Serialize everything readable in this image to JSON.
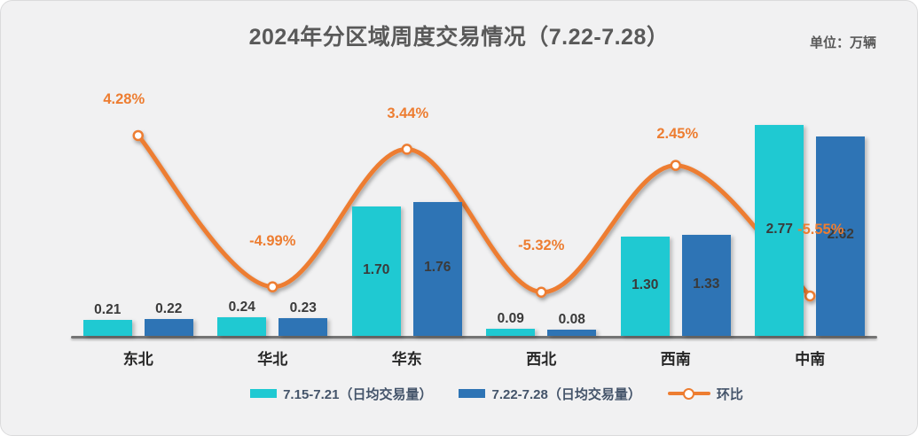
{
  "card": {
    "title": "2024年分区域周度交易情况（7.22-7.28）",
    "unit_label": "单位：万辆"
  },
  "chart_data": {
    "type": "combo",
    "categories": [
      "东北",
      "华北",
      "华东",
      "西北",
      "西南",
      "中南"
    ],
    "series": [
      {
        "name": "7.15-7.21（日均交易量）",
        "chart_type": "bar",
        "color": "#1FC9D2",
        "values": [
          0.21,
          0.24,
          1.7,
          0.09,
          1.3,
          2.77
        ],
        "labels": [
          "0.21",
          "0.24",
          "1.70",
          "0.09",
          "1.30",
          "2.77"
        ]
      },
      {
        "name": "7.22-7.28（日均交易量）",
        "chart_type": "bar",
        "color": "#2E74B5",
        "values": [
          0.22,
          0.23,
          1.76,
          0.08,
          1.33,
          2.62
        ],
        "labels": [
          "0.22",
          "0.23",
          "1.76",
          "0.08",
          "1.33",
          "2.62"
        ]
      },
      {
        "name": "环比",
        "chart_type": "line",
        "color": "#ED7D31",
        "unit": "%",
        "values": [
          4.28,
          -4.99,
          3.44,
          -5.32,
          2.45,
          -5.55
        ],
        "labels": [
          "4.28%",
          "-4.99%",
          "3.44%",
          "-5.32%",
          "2.45%",
          "-5.55%"
        ]
      }
    ],
    "ylabel": "",
    "xlabel": "",
    "grid": false,
    "legend_position": "bottom",
    "colors": {
      "background": "#F1F1F2",
      "axis": "#747474",
      "title_text": "#595959",
      "bar_value_text": "#3A3A3A",
      "category_text": "#262626",
      "line_label_text": "#ED7D31",
      "legend_text": "#44546A"
    }
  }
}
